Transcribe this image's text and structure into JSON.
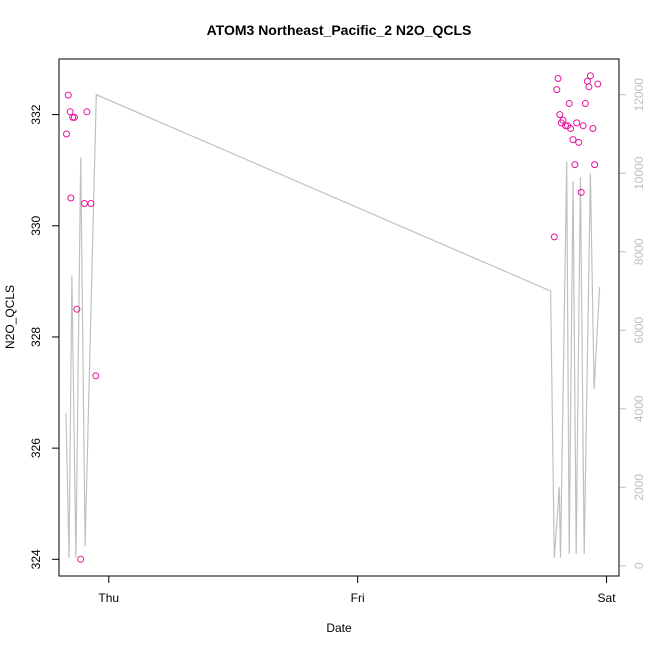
{
  "chart_data": {
    "type": "scatter",
    "title": "ATOM3 Northeast_Pacific_2 N2O_QCLS",
    "xlabel": "Date",
    "ylabel": "N2O_QCLS",
    "x_unit": "days since Thursday 00:00",
    "xlim": [
      -0.2,
      2.05
    ],
    "ylim": [
      323.7,
      333.0
    ],
    "x_ticks": [
      {
        "value": 0,
        "label": "Thu"
      },
      {
        "value": 1,
        "label": "Fri"
      },
      {
        "value": 2,
        "label": "Sat"
      }
    ],
    "y_ticks": [
      {
        "value": 324,
        "label": "324"
      },
      {
        "value": 326,
        "label": "326"
      },
      {
        "value": 328,
        "label": "328"
      },
      {
        "value": 330,
        "label": "330"
      },
      {
        "value": 332,
        "label": "332"
      }
    ],
    "y2_ticks": [
      {
        "value": 0,
        "label": "0"
      },
      {
        "value": 2000,
        "label": "2000"
      },
      {
        "value": 4000,
        "label": "4000"
      },
      {
        "value": 6000,
        "label": "6000"
      },
      {
        "value": 8000,
        "label": "8000"
      },
      {
        "value": 10000,
        "label": "10000"
      },
      {
        "value": 12000,
        "label": "12000"
      }
    ],
    "y2lim": [
      -260,
      12910
    ],
    "colors": {
      "points": "#e6149b",
      "altitude_line": "#c0c0c0",
      "right_axis": "#c0c0c0",
      "frame": "#000000"
    },
    "series": [
      {
        "type": "scatter",
        "points": [
          {
            "x": -0.17,
            "y": 331.65
          },
          {
            "x": -0.163,
            "y": 332.35
          },
          {
            "x": -0.155,
            "y": 332.05
          },
          {
            "x": -0.152,
            "y": 330.5
          },
          {
            "x": -0.145,
            "y": 331.95
          },
          {
            "x": -0.138,
            "y": 331.95
          },
          {
            "x": -0.128,
            "y": 328.5
          },
          {
            "x": -0.113,
            "y": 324.0
          },
          {
            "x": -0.098,
            "y": 330.4
          },
          {
            "x": -0.088,
            "y": 332.05
          },
          {
            "x": -0.072,
            "y": 330.4
          },
          {
            "x": -0.052,
            "y": 327.3
          },
          {
            "x": 1.79,
            "y": 329.8
          },
          {
            "x": 1.8,
            "y": 332.45
          },
          {
            "x": 1.805,
            "y": 332.65
          },
          {
            "x": 1.812,
            "y": 332.0
          },
          {
            "x": 1.818,
            "y": 331.85
          },
          {
            "x": 1.825,
            "y": 331.9
          },
          {
            "x": 1.835,
            "y": 331.8
          },
          {
            "x": 1.843,
            "y": 331.8
          },
          {
            "x": 1.85,
            "y": 332.2
          },
          {
            "x": 1.855,
            "y": 331.75
          },
          {
            "x": 1.865,
            "y": 331.55
          },
          {
            "x": 1.873,
            "y": 331.1
          },
          {
            "x": 1.88,
            "y": 331.85
          },
          {
            "x": 1.888,
            "y": 331.5
          },
          {
            "x": 1.898,
            "y": 330.6
          },
          {
            "x": 1.906,
            "y": 331.8
          },
          {
            "x": 1.915,
            "y": 332.2
          },
          {
            "x": 1.923,
            "y": 332.6
          },
          {
            "x": 1.929,
            "y": 332.5
          },
          {
            "x": 1.935,
            "y": 332.7
          },
          {
            "x": 1.945,
            "y": 331.75
          },
          {
            "x": 1.952,
            "y": 331.1
          },
          {
            "x": 1.965,
            "y": 332.55
          }
        ]
      },
      {
        "type": "line",
        "axis": "right",
        "points": [
          {
            "x": -0.172,
            "y": 3900
          },
          {
            "x": -0.16,
            "y": 200
          },
          {
            "x": -0.148,
            "y": 7400
          },
          {
            "x": -0.132,
            "y": 200
          },
          {
            "x": -0.113,
            "y": 10400
          },
          {
            "x": -0.095,
            "y": 500
          },
          {
            "x": -0.05,
            "y": 12000
          },
          {
            "x": 1.775,
            "y": 7000
          },
          {
            "x": 1.79,
            "y": 200
          },
          {
            "x": 1.81,
            "y": 2000
          },
          {
            "x": 1.815,
            "y": 200
          },
          {
            "x": 1.84,
            "y": 10300
          },
          {
            "x": 1.85,
            "y": 300
          },
          {
            "x": 1.865,
            "y": 9800
          },
          {
            "x": 1.878,
            "y": 300
          },
          {
            "x": 1.895,
            "y": 9900
          },
          {
            "x": 1.91,
            "y": 300
          },
          {
            "x": 1.935,
            "y": 10000
          },
          {
            "x": 1.95,
            "y": 4500
          },
          {
            "x": 1.972,
            "y": 7100
          }
        ]
      }
    ]
  }
}
